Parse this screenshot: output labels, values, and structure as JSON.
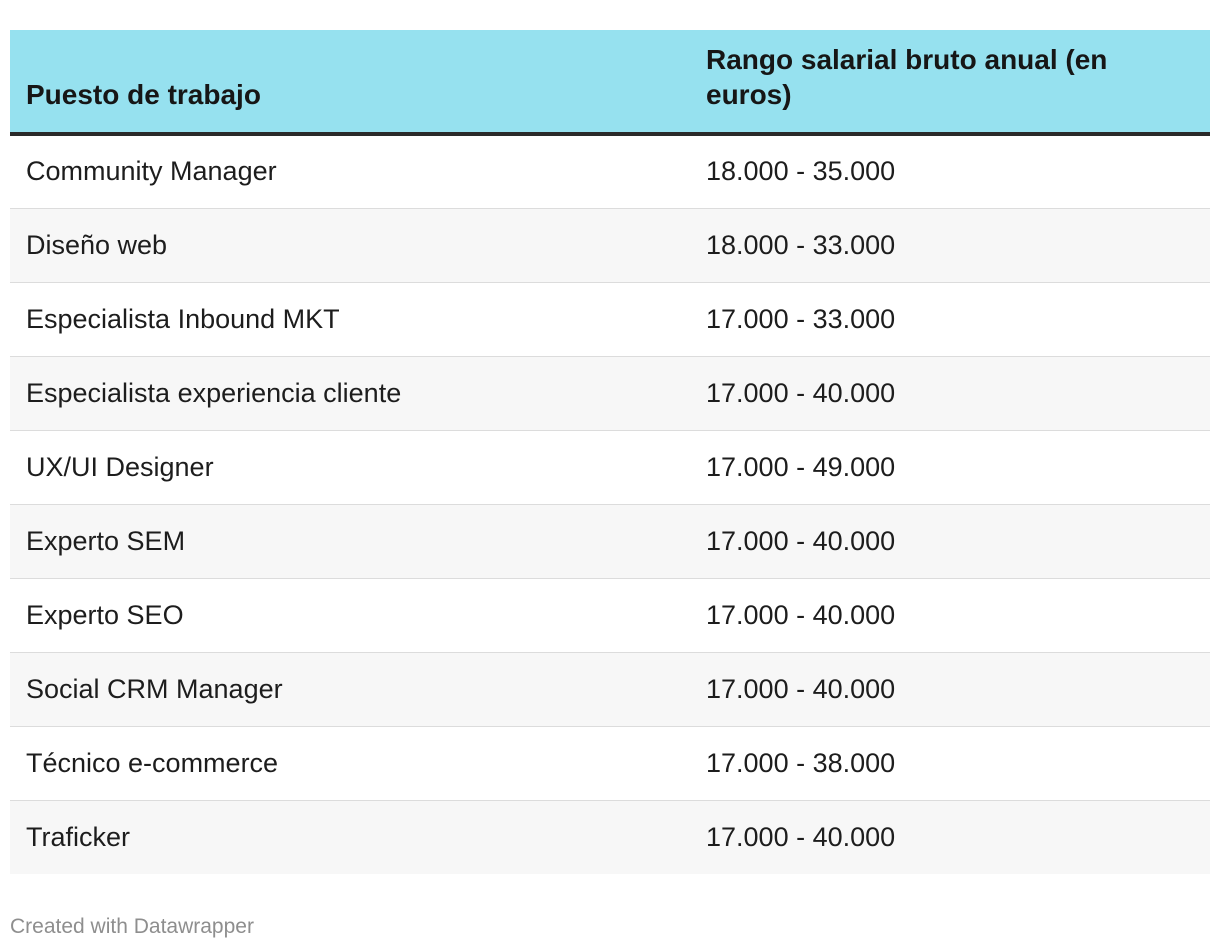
{
  "table": {
    "headers": [
      "Puesto de trabajo",
      "Rango salarial bruto anual (en euros)"
    ],
    "header_bg": "#96e1ef",
    "rows": [
      [
        "Community Manager",
        "18.000 - 35.000"
      ],
      [
        "Diseño web",
        "18.000 - 33.000"
      ],
      [
        "Especialista Inbound MKT",
        "17.000 - 33.000"
      ],
      [
        "Especialista experiencia cliente",
        "17.000 - 40.000"
      ],
      [
        "UX/UI Designer",
        "17.000 - 49.000"
      ],
      [
        "Experto SEM",
        "17.000 - 40.000"
      ],
      [
        "Experto SEO",
        "17.000 - 40.000"
      ],
      [
        "Social CRM Manager",
        "17.000 - 40.000"
      ],
      [
        "Técnico e-commerce",
        "17.000 - 38.000"
      ],
      [
        "Traficker",
        "17.000 - 40.000"
      ]
    ]
  },
  "footer": {
    "credit": "Created with Datawrapper"
  }
}
